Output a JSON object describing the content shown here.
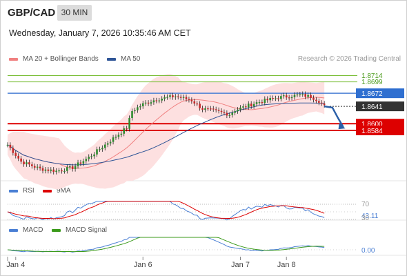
{
  "header": {
    "pair": "GBP/CAD",
    "timeframe": "30 MIN",
    "datetime": "Wednesday, January 7, 2026 10:35:46 AM CET",
    "credit": "Research © 2026 Trading Central"
  },
  "legends": {
    "main": [
      {
        "label": "MA 20 + Bollinger Bands",
        "color": "#f08080"
      },
      {
        "label": "MA 50",
        "color": "#2f5597"
      }
    ],
    "rsi": [
      {
        "label": "RSI",
        "color": "#4a7fd4"
      },
      {
        "label": "9MA",
        "color": "#dd0000"
      }
    ],
    "macd": [
      {
        "label": "MACD",
        "color": "#4a7fd4"
      },
      {
        "label": "MACD Signal",
        "color": "#3a9a1a"
      }
    ]
  },
  "chart_data": {
    "type": "candlestick",
    "y_range": [
      1.8468,
      1.8736
    ],
    "levels": [
      {
        "value": 1.8714,
        "label": "1.8714",
        "kind": "resistance",
        "color": "#7cbf3a",
        "label_color": "#4a9a1a"
      },
      {
        "value": 1.8699,
        "label": "1.8699",
        "kind": "resistance",
        "color": "#7cbf3a",
        "label_color": "#4a9a1a"
      },
      {
        "value": 1.8672,
        "label": "1.8672",
        "kind": "pivot",
        "color": "#4a7fd4",
        "label_bg": "#2f6fd0"
      },
      {
        "value": 1.8641,
        "label": "1.8641",
        "kind": "last",
        "label_bg": "#333333"
      },
      {
        "value": 1.86,
        "label": "1.8600",
        "kind": "support",
        "color": "#dd0000",
        "label_bg": "#dd0000"
      },
      {
        "value": 1.8584,
        "label": "1.8584",
        "kind": "support",
        "color": "#dd0000",
        "label_bg": "#dd0000"
      }
    ],
    "x_labels": [
      "Jan 4",
      "Jan 6",
      "Jan 7",
      "Jan 8"
    ],
    "x_label_index": [
      3,
      50,
      86,
      103
    ],
    "n_bars": 120,
    "close_path": [
      [
        0,
        1.855
      ],
      [
        5,
        1.851
      ],
      [
        12,
        1.8493
      ],
      [
        18,
        1.8488
      ],
      [
        24,
        1.8496
      ],
      [
        30,
        1.852
      ],
      [
        38,
        1.856
      ],
      [
        44,
        1.859
      ],
      [
        46,
        1.863
      ],
      [
        50,
        1.8646
      ],
      [
        55,
        1.8658
      ],
      [
        62,
        1.8665
      ],
      [
        68,
        1.8655
      ],
      [
        72,
        1.8635
      ],
      [
        78,
        1.8628
      ],
      [
        82,
        1.8622
      ],
      [
        84,
        1.8632
      ],
      [
        92,
        1.865
      ],
      [
        100,
        1.8662
      ],
      [
        108,
        1.8668
      ],
      [
        112,
        1.8664
      ],
      [
        115,
        1.8654
      ],
      [
        117,
        1.8641
      ]
    ],
    "projection": [
      [
        117,
        1.8641
      ],
      [
        120,
        1.8638
      ],
      [
        122,
        1.8614
      ],
      [
        124,
        1.8592
      ]
    ],
    "rsi": {
      "levels": [
        70,
        30
      ],
      "last_value": "43.11",
      "labels": [
        "70",
        "43.11",
        "30"
      ]
    },
    "macd": {
      "zero_label": "0.00"
    }
  }
}
